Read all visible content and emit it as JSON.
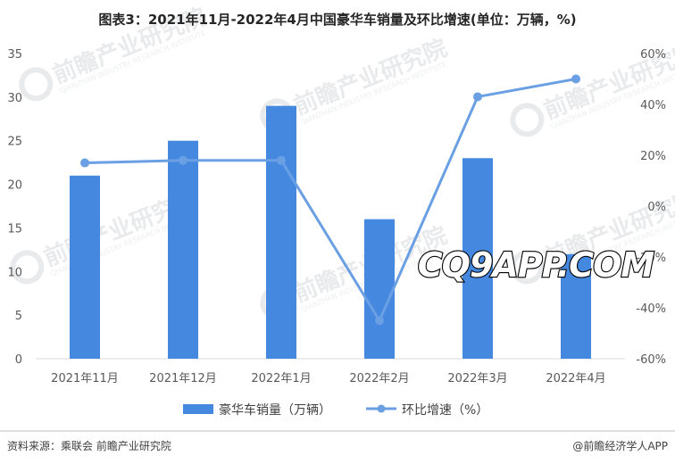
{
  "chart_data": {
    "type": "bar",
    "title": "图表3：2021年11月-2022年4月中国豪华车销量及环比增速(单位：万辆，%)",
    "categories": [
      "2021年11月",
      "2021年12月",
      "2022年1月",
      "2022年2月",
      "2022年3月",
      "2022年4月"
    ],
    "series": [
      {
        "name": "豪华车销量（万辆）",
        "type": "bar",
        "axis": "left",
        "color": "#4588e0",
        "values": [
          21,
          25,
          29,
          16,
          23,
          12
        ]
      },
      {
        "name": "环比增速（%）",
        "type": "line",
        "axis": "right",
        "color": "#6a9fe3",
        "values": [
          17,
          18,
          18,
          -45,
          43,
          50
        ]
      }
    ],
    "yaxis_left": {
      "range": [
        0,
        35
      ],
      "ticks": [
        "0",
        "5",
        "10",
        "15",
        "20",
        "25",
        "30",
        "35"
      ]
    },
    "yaxis_right": {
      "range": [
        -60,
        60
      ],
      "ticks": [
        "-60%",
        "-40%",
        "-20%",
        "0%",
        "20%",
        "40%",
        "60%"
      ]
    },
    "grid": false,
    "legend_position": "bottom"
  },
  "footer": {
    "source": "资料来源：乘联会 前瞻产业研究院",
    "credit": "@前瞻经济学人APP"
  },
  "watermark": {
    "text": "前瞻产业研究院",
    "sub": "QIANZHAN INDUSTRY RESEARCH INSTITUTE"
  },
  "stamp": {
    "text": "CQ9APP.COM"
  }
}
